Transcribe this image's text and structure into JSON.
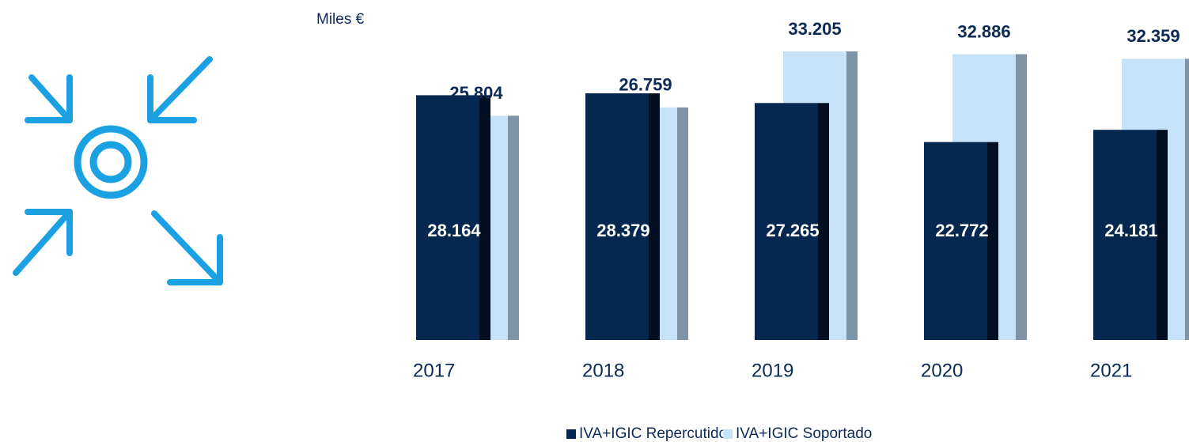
{
  "chart_data": {
    "type": "bar",
    "unit_label": "Miles €",
    "categories": [
      "2017",
      "2018",
      "2019",
      "2020",
      "2021"
    ],
    "series": [
      {
        "name": "IVA+IGIC Repercutido",
        "color": "#062750",
        "side_color": "#020f22",
        "values": [
          28164,
          28379,
          27265,
          22772,
          24181
        ],
        "value_labels": [
          "28.164",
          "28.379",
          "27.265",
          "22.772",
          "24.181"
        ]
      },
      {
        "name": "IVA+IGIC Soportado",
        "color": "#c5e2f8",
        "side_color": "#7f93a6",
        "values": [
          25804,
          26759,
          33205,
          32886,
          32359
        ],
        "value_labels": [
          "25.804",
          "26.759",
          "33.205",
          "32.886",
          "32.359"
        ]
      }
    ]
  }
}
